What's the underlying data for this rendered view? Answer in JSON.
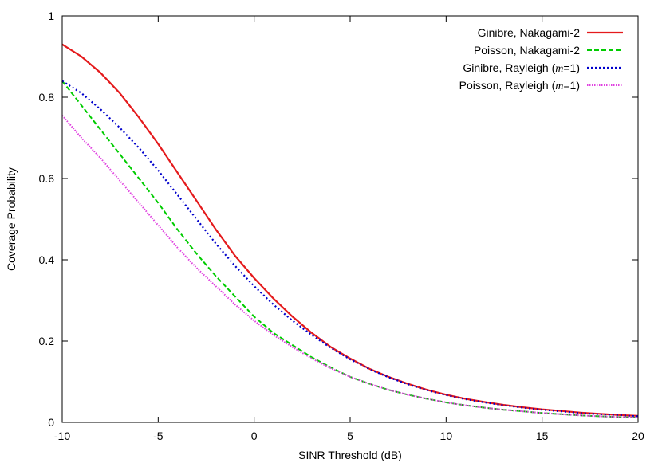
{
  "chart_data": {
    "type": "line",
    "xlabel": "SINR Threshold (dB)",
    "ylabel": "Coverage Probability",
    "xlim": [
      -10,
      20
    ],
    "ylim": [
      0,
      1
    ],
    "xticks": [
      -10,
      -5,
      0,
      5,
      10,
      15,
      20
    ],
    "yticks": [
      0,
      0.2,
      0.4,
      0.6,
      0.8,
      1
    ],
    "xtick_labels": [
      "-10",
      "-5",
      "0",
      "5",
      "10",
      "15",
      "20"
    ],
    "ytick_labels": [
      "0",
      "0.2",
      "0.4",
      "0.6",
      "0.8",
      "1"
    ],
    "grid": false,
    "legend_position": "top-right",
    "series": [
      {
        "name": "Ginibre, Nakagami-2",
        "legend_prefix": "Ginibre, Nakagami-2",
        "legend_italic": "",
        "legend_suffix": "",
        "color": "#e41a1c",
        "style": "solid",
        "x": [
          -10,
          -9,
          -8,
          -7,
          -6,
          -5,
          -4,
          -3,
          -2,
          -1,
          0,
          1,
          2,
          3,
          4,
          5,
          6,
          7,
          8,
          9,
          10,
          11,
          12,
          13,
          14,
          15,
          16,
          17,
          18,
          19,
          20
        ],
        "values": [
          0.93,
          0.9,
          0.86,
          0.81,
          0.75,
          0.685,
          0.615,
          0.545,
          0.475,
          0.41,
          0.355,
          0.305,
          0.26,
          0.22,
          0.185,
          0.157,
          0.132,
          0.112,
          0.095,
          0.08,
          0.068,
          0.058,
          0.05,
          0.043,
          0.037,
          0.032,
          0.028,
          0.024,
          0.021,
          0.018,
          0.016
        ]
      },
      {
        "name": "Poisson, Nakagami-2",
        "legend_prefix": "Poisson, Nakagami-2",
        "legend_italic": "",
        "legend_suffix": "",
        "color": "#00cc00",
        "style": "dashed",
        "x": [
          -10,
          -9,
          -8,
          -7,
          -6,
          -5,
          -4,
          -3,
          -2,
          -1,
          0,
          1,
          2,
          3,
          4,
          5,
          6,
          7,
          8,
          9,
          10,
          11,
          12,
          13,
          14,
          15,
          16,
          17,
          18,
          19,
          20
        ],
        "values": [
          0.84,
          0.78,
          0.72,
          0.66,
          0.6,
          0.54,
          0.475,
          0.415,
          0.36,
          0.31,
          0.26,
          0.22,
          0.19,
          0.16,
          0.135,
          0.112,
          0.095,
          0.08,
          0.068,
          0.058,
          0.049,
          0.042,
          0.036,
          0.031,
          0.027,
          0.023,
          0.02,
          0.017,
          0.015,
          0.013,
          0.012
        ]
      },
      {
        "name": "Ginibre, Rayleigh (m=1)",
        "legend_prefix": "Ginibre, Rayleigh (",
        "legend_italic": "m",
        "legend_suffix": "=1)",
        "color": "#0000cc",
        "style": "dotted",
        "x": [
          -10,
          -9,
          -8,
          -7,
          -6,
          -5,
          -4,
          -3,
          -2,
          -1,
          0,
          1,
          2,
          3,
          4,
          5,
          6,
          7,
          8,
          9,
          10,
          11,
          12,
          13,
          14,
          15,
          16,
          17,
          18,
          19,
          20
        ],
        "values": [
          0.84,
          0.81,
          0.77,
          0.725,
          0.675,
          0.62,
          0.56,
          0.5,
          0.44,
          0.385,
          0.335,
          0.29,
          0.25,
          0.215,
          0.183,
          0.155,
          0.131,
          0.111,
          0.094,
          0.079,
          0.067,
          0.057,
          0.049,
          0.042,
          0.036,
          0.031,
          0.027,
          0.023,
          0.02,
          0.018,
          0.015
        ]
      },
      {
        "name": "Poisson, Rayleigh (m=1)",
        "legend_prefix": "Poisson, Rayleigh (",
        "legend_italic": "m",
        "legend_suffix": "=1)",
        "color": "#e040e0",
        "style": "densedotted",
        "x": [
          -10,
          -9,
          -8,
          -7,
          -6,
          -5,
          -4,
          -3,
          -2,
          -1,
          0,
          1,
          2,
          3,
          4,
          5,
          6,
          7,
          8,
          9,
          10,
          11,
          12,
          13,
          14,
          15,
          16,
          17,
          18,
          19,
          20
        ],
        "values": [
          0.755,
          0.7,
          0.65,
          0.595,
          0.54,
          0.485,
          0.43,
          0.38,
          0.335,
          0.29,
          0.25,
          0.215,
          0.185,
          0.157,
          0.133,
          0.112,
          0.095,
          0.08,
          0.068,
          0.058,
          0.049,
          0.042,
          0.036,
          0.031,
          0.027,
          0.023,
          0.02,
          0.017,
          0.015,
          0.013,
          0.012
        ]
      }
    ]
  }
}
